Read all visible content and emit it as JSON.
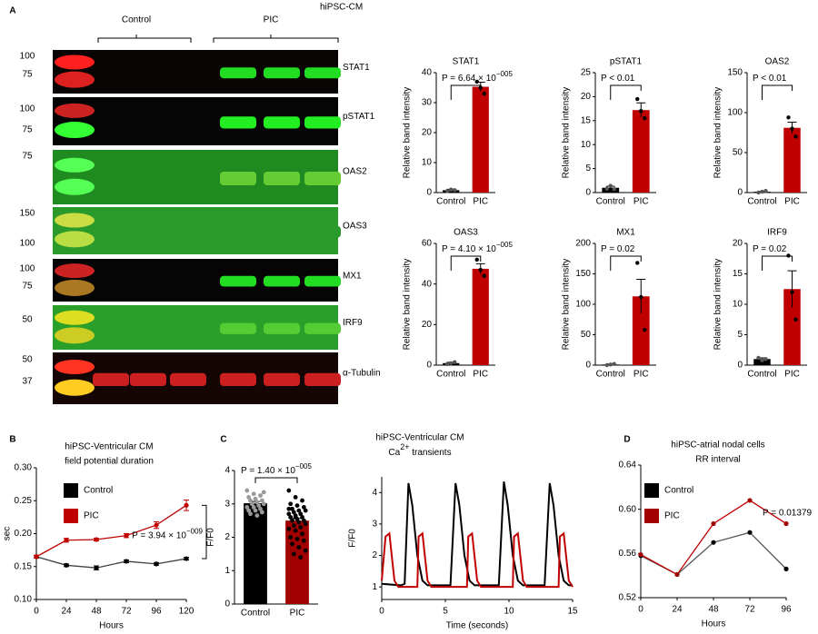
{
  "panels": [
    "A",
    "B",
    "C",
    "D"
  ],
  "blot": {
    "title": "hiPSC-CM",
    "groups": [
      "Control",
      "PIC"
    ],
    "rows": [
      {
        "name": "STAT1",
        "markers": [
          "100",
          "75"
        ]
      },
      {
        "name": "pSTAT1",
        "markers": [
          "100",
          "75"
        ]
      },
      {
        "name": "OAS2",
        "markers": [
          "75"
        ]
      },
      {
        "name": "OAS3",
        "markers": [
          "150",
          "100"
        ]
      },
      {
        "name": "MX1",
        "markers": [
          "100",
          "75"
        ]
      },
      {
        "name": "IRF9",
        "markers": [
          "50"
        ]
      },
      {
        "name": "α-Tubulin",
        "markers": [
          "50",
          "37"
        ]
      }
    ]
  },
  "chart_data": [
    {
      "type": "bar",
      "title": "STAT1",
      "ylabel": "Relative band intensity",
      "categories": [
        "Control",
        "PIC"
      ],
      "values": [
        0.8,
        35.3
      ],
      "errors": [
        0.3,
        1.5
      ],
      "colors": [
        "#000000",
        "#c00000"
      ],
      "points": [
        [
          0.5,
          1.0,
          0.8
        ],
        [
          37,
          35,
          33
        ]
      ],
      "point_colors": [
        "#555555",
        "#000000"
      ],
      "ylim": [
        0,
        40
      ],
      "yticks": [
        0,
        10,
        20,
        30,
        40
      ],
      "annotation": {
        "text": "P = 6.64 × 10",
        "exponent": "−005"
      }
    },
    {
      "type": "bar",
      "title": "pSTAT1",
      "ylabel": "Relative band intensity",
      "categories": [
        "Control",
        "PIC"
      ],
      "values": [
        1.0,
        17.2
      ],
      "errors": [
        0.3,
        1.5
      ],
      "colors": [
        "#000000",
        "#c00000"
      ],
      "points": [
        [
          0.8,
          1.4,
          0.7
        ],
        [
          19.5,
          17,
          15.5
        ]
      ],
      "point_colors": [
        "#555555",
        "#000000"
      ],
      "ylim": [
        0,
        25
      ],
      "yticks": [
        0,
        5,
        10,
        15,
        20,
        25
      ],
      "annotation": {
        "text": "P < 0.01"
      }
    },
    {
      "type": "bar",
      "title": "OAS2",
      "ylabel": "Relative band intensity",
      "categories": [
        "Control",
        "PIC"
      ],
      "values": [
        1,
        81
      ],
      "errors": [
        0.5,
        7
      ],
      "colors": [
        "#000000",
        "#c00000"
      ],
      "points": [
        [
          0,
          1,
          2
        ],
        [
          94,
          80,
          70
        ]
      ],
      "point_colors": [
        "#555555",
        "#000000"
      ],
      "ylim": [
        0,
        150
      ],
      "yticks": [
        0,
        50,
        100,
        150
      ],
      "annotation": {
        "text": "P < 0.01"
      }
    },
    {
      "type": "bar",
      "title": "OAS3",
      "ylabel": "Relative band intensity",
      "categories": [
        "Control",
        "PIC"
      ],
      "values": [
        1,
        47.5
      ],
      "errors": [
        0.4,
        2.5
      ],
      "colors": [
        "#000000",
        "#c00000"
      ],
      "points": [
        [
          0.5,
          1,
          1.5
        ],
        [
          52,
          47,
          44
        ]
      ],
      "point_colors": [
        "#555555",
        "#000000"
      ],
      "ylim": [
        0,
        60
      ],
      "yticks": [
        0,
        20,
        40,
        60
      ],
      "annotation": {
        "text": "P = 4.10 × 10",
        "exponent": "−005"
      }
    },
    {
      "type": "bar",
      "title": "MX1",
      "ylabel": "Relative band intensity",
      "categories": [
        "Control",
        "PIC"
      ],
      "values": [
        1,
        113
      ],
      "errors": [
        0.8,
        28
      ],
      "colors": [
        "#000000",
        "#c00000"
      ],
      "points": [
        [
          0,
          1,
          2
        ],
        [
          168,
          112,
          58
        ]
      ],
      "point_colors": [
        "#555555",
        "#000000"
      ],
      "ylim": [
        0,
        200
      ],
      "yticks": [
        0,
        50,
        100,
        150,
        200
      ],
      "annotation": {
        "text": "P = 0.02"
      }
    },
    {
      "type": "bar",
      "title": "IRF9",
      "ylabel": "Relative band intensity",
      "categories": [
        "Control",
        "PIC"
      ],
      "values": [
        1,
        12.5
      ],
      "errors": [
        0.2,
        3
      ],
      "colors": [
        "#000000",
        "#c00000"
      ],
      "points": [
        [
          1.2,
          0.8,
          1.0
        ],
        [
          18,
          12,
          7.5
        ]
      ],
      "point_colors": [
        "#555555",
        "#000000"
      ],
      "ylim": [
        0,
        20
      ],
      "yticks": [
        0,
        5,
        10,
        15,
        20
      ],
      "annotation": {
        "text": "P = 0.02"
      }
    },
    {
      "type": "line",
      "title": "hiPSC-Ventricular CM",
      "subtitle": "field potential duration",
      "xlabel": "Hours",
      "ylabel": "sec",
      "x": [
        0,
        24,
        48,
        72,
        96,
        120
      ],
      "xlim": [
        0,
        120
      ],
      "xticks": [
        0,
        24,
        48,
        72,
        96,
        120
      ],
      "ylim": [
        0.1,
        0.3
      ],
      "yticks": [
        {
          "value": 0.1,
          "label": "0.10"
        },
        0.15,
        {
          "value": 0.2,
          "label": "0.20"
        },
        0.25,
        {
          "value": 0.3,
          "label": "0.30"
        }
      ],
      "markers": true,
      "legend": "upper left",
      "series": [
        {
          "name": "Control",
          "color": "#404040",
          "marker_color": "#000000",
          "values": [
            0.165,
            0.152,
            0.148,
            0.158,
            0.154,
            0.162
          ],
          "errors": [
            0.002,
            0.002,
            0.003,
            0.002,
            0.002,
            0.002
          ]
        },
        {
          "name": "PIC",
          "color": "#c00000",
          "marker_color": "#c00000",
          "values": [
            0.165,
            0.19,
            0.191,
            0.197,
            0.213,
            0.243
          ],
          "errors": [
            0.002,
            0.003,
            0.002,
            0.003,
            0.005,
            0.008
          ]
        }
      ],
      "annotation": {
        "text": "P = 3.94 × 10",
        "exponent": "−009"
      }
    },
    {
      "type": "bar",
      "title": "hiPSC-Ventricular CM",
      "subtitle": "Ca",
      "subtitle_sup": "2+",
      "subtitle_rest": " transients",
      "ylabel": "F/F0",
      "categories": [
        "Control",
        "PIC"
      ],
      "values": [
        3.02,
        2.5
      ],
      "errors": [
        0.05,
        0.06
      ],
      "colors": [
        "#000000",
        "#a00000"
      ],
      "points": [
        [
          3.4,
          3.3,
          3.25,
          3.2,
          3.15,
          3.1,
          3.1,
          3.05,
          3.0,
          3.0,
          2.95,
          2.9,
          2.9,
          2.85,
          2.8,
          2.8,
          2.75,
          2.7,
          2.65,
          3.35
        ],
        [
          3.4,
          3.2,
          3.1,
          3.0,
          2.95,
          2.9,
          2.85,
          2.8,
          2.8,
          2.75,
          2.7,
          2.7,
          2.65,
          2.6,
          2.6,
          2.55,
          2.5,
          2.5,
          2.45,
          2.4,
          2.35,
          2.3,
          2.25,
          2.2,
          2.1,
          2.0,
          1.95,
          1.9,
          1.8,
          1.7,
          1.6,
          1.5,
          1.4,
          2.85,
          2.6
        ]
      ],
      "point_colors": [
        "#999999",
        "#000000"
      ],
      "ylim": [
        0,
        4
      ],
      "yticks": [
        0,
        1,
        2,
        3,
        4
      ],
      "annotation": {
        "text": "P = 1.40 × 10",
        "exponent": "−005"
      }
    },
    {
      "type": "line",
      "xlabel": "Time (seconds)",
      "ylabel": "F/F0",
      "xlim": [
        0,
        15
      ],
      "xticks": [
        0,
        5,
        10,
        15
      ],
      "ylim": [
        0.6,
        4.5
      ],
      "yticks": [
        1,
        2,
        3,
        4
      ],
      "markers": false,
      "series": [
        {
          "color": "#000000",
          "x": [
            0,
            1.5,
            1.8,
            2.1,
            2.4,
            2.8,
            3.2,
            3.6,
            5.4,
            5.8,
            6.1,
            6.5,
            6.9,
            7.3,
            9.2,
            9.6,
            9.9,
            10.3,
            10.7,
            11.1,
            12.8,
            13.2,
            13.5,
            13.9,
            14.3,
            14.7,
            15
          ],
          "values": [
            1.1,
            1.05,
            1.1,
            4.3,
            3.6,
            2.0,
            1.2,
            1.05,
            1.05,
            4.3,
            3.6,
            2.0,
            1.2,
            1.05,
            1.05,
            4.35,
            3.6,
            2.0,
            1.2,
            1.05,
            1.05,
            4.3,
            3.6,
            2.0,
            1.2,
            1.05,
            1.05
          ]
        },
        {
          "color": "#c00000",
          "x": [
            0,
            0.3,
            0.6,
            1.0,
            1.3,
            2.8,
            2.9,
            3.2,
            3.6,
            3.9,
            6.7,
            6.8,
            7.1,
            7.5,
            7.8,
            10.3,
            10.4,
            10.7,
            11.1,
            11.4,
            13.9,
            14.0,
            14.3,
            14.7,
            15
          ],
          "values": [
            1.2,
            2.6,
            2.7,
            1.2,
            1.0,
            1.0,
            2.6,
            2.7,
            1.2,
            1.0,
            1.0,
            2.6,
            2.7,
            1.2,
            1.0,
            1.0,
            2.6,
            2.7,
            1.2,
            1.0,
            1.0,
            2.6,
            2.7,
            1.2,
            1.0
          ]
        }
      ]
    },
    {
      "type": "line",
      "title": "hiPSC-atrial nodal cells",
      "subtitle": "RR interval",
      "xlabel": "Hours",
      "x": [
        0,
        24,
        48,
        72,
        96
      ],
      "xlim": [
        0,
        96
      ],
      "xticks": [
        0,
        24,
        48,
        72,
        96
      ],
      "ylim": [
        0.52,
        0.64
      ],
      "yticks": [
        0.52,
        0.56,
        {
          "value": 0.6,
          "label": "0.60"
        },
        0.64
      ],
      "markers": true,
      "legend": "upper left",
      "series": [
        {
          "name": "Control",
          "color": "#555555",
          "marker_color": "#000000",
          "values": [
            0.558,
            0.541,
            0.57,
            0.579,
            0.546
          ]
        },
        {
          "name": "PIC",
          "color": "#c00000",
          "marker_color": "#a00000",
          "values": [
            0.559,
            0.541,
            0.587,
            0.608,
            0.587
          ]
        }
      ],
      "annotation": {
        "text": "P = 0.01379"
      }
    }
  ]
}
